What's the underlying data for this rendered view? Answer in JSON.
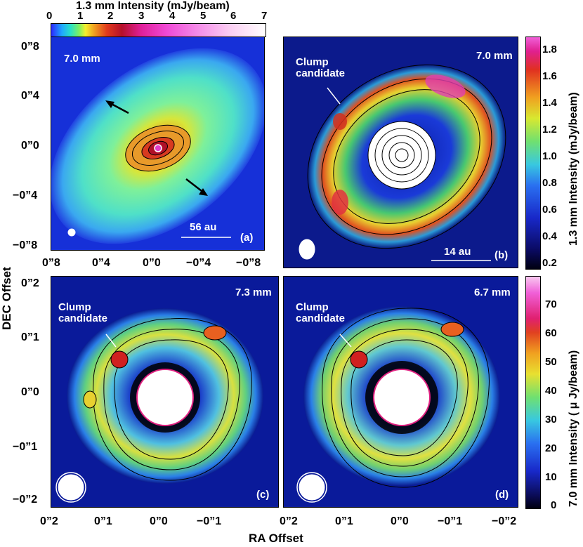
{
  "top_colorbar": {
    "title": "1.3 mm Intensity (mJy/beam)",
    "ticks": [
      "0",
      "1",
      "2",
      "3",
      "4",
      "5",
      "6",
      "7"
    ]
  },
  "right_colorbar_top": {
    "title": "1.3 mm Intensity (mJy/beam)",
    "ticks": [
      "1.8",
      "1.6",
      "1.4",
      "1.2",
      "1.0",
      "0.8",
      "0.6",
      "0.4",
      "0.2"
    ]
  },
  "right_colorbar_bottom": {
    "title": "7.0 mm Intensity ( μ Jy/beam)",
    "ticks": [
      "70",
      "60",
      "50",
      "40",
      "30",
      "20",
      "10",
      "0"
    ]
  },
  "axes": {
    "xlabel": "RA Offset",
    "ylabel": "DEC Offset",
    "panel_a_yticks": [
      "0”8",
      "0”4",
      "0”0",
      "−0”4",
      "−0”8"
    ],
    "panel_a_xticks": [
      "0”8",
      "0”4",
      "0”0",
      "−0”4",
      "−0”8"
    ],
    "bottom_yticks": [
      "0”2",
      "0”1",
      "0”0",
      "−0”1",
      "−0”2"
    ],
    "bottom_xticks_c": [
      "0”2",
      "0”1",
      "0”0",
      "−0”1"
    ],
    "bottom_xticks_d": [
      "0”2",
      "0”1",
      "0”0",
      "−0”1",
      "−0”2"
    ]
  },
  "panels": {
    "a": {
      "wavelength": "7.0 mm",
      "scale": "56 au",
      "letter": "(a)"
    },
    "b": {
      "wavelength": "7.0 mm",
      "scale": "14 au",
      "letter": "(b)",
      "annotation": "Clump\ncandidate"
    },
    "c": {
      "wavelength": "7.3 mm",
      "letter": "(c)",
      "annotation": "Clump\ncandidate"
    },
    "d": {
      "wavelength": "6.7 mm",
      "letter": "(d)",
      "annotation": "Clump\ncandidate"
    }
  }
}
